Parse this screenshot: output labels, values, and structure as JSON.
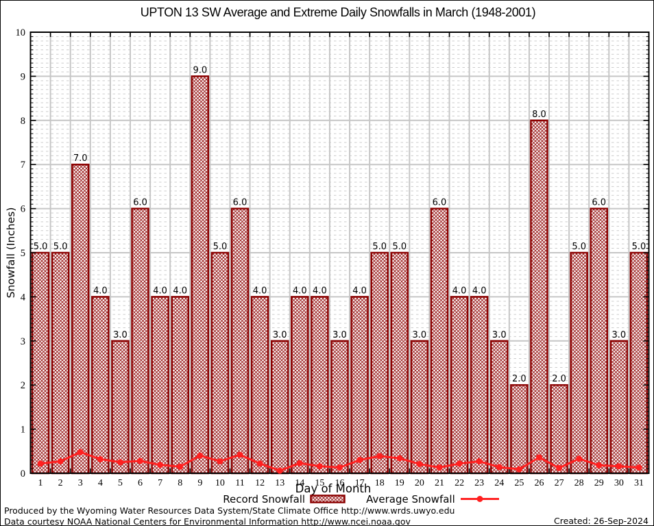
{
  "chart_data": {
    "type": "bar",
    "title": "UPTON 13 SW Average and Extreme Daily Snowfalls in March (1948-2001)",
    "xlabel": "Day of Month",
    "ylabel": "Snowfall (Inches)",
    "ylim": [
      0,
      10
    ],
    "y_major_step": 1,
    "y_minor_step": 0.1,
    "grid": "major and minor dashed horizontal, major vertical per day",
    "legend_position": "bottom",
    "categories": [
      "1",
      "2",
      "3",
      "4",
      "5",
      "6",
      "7",
      "8",
      "9",
      "10",
      "11",
      "12",
      "13",
      "14",
      "15",
      "16",
      "17",
      "18",
      "19",
      "20",
      "21",
      "22",
      "23",
      "24",
      "25",
      "26",
      "27",
      "28",
      "29",
      "30",
      "31"
    ],
    "series": [
      {
        "name": "Record Snowfall",
        "type": "bar",
        "values": [
          5.0,
          5.0,
          7.0,
          4.0,
          3.0,
          6.0,
          4.0,
          4.0,
          9.0,
          5.0,
          6.0,
          4.0,
          3.0,
          4.0,
          4.0,
          3.0,
          4.0,
          5.0,
          5.0,
          3.0,
          6.0,
          4.0,
          4.0,
          3.0,
          2.0,
          8.0,
          2.0,
          5.0,
          6.0,
          3.0,
          5.0
        ]
      },
      {
        "name": "Average Snowfall",
        "type": "line",
        "values": [
          0.22,
          0.27,
          0.48,
          0.32,
          0.25,
          0.28,
          0.19,
          0.15,
          0.4,
          0.27,
          0.42,
          0.22,
          0.06,
          0.23,
          0.16,
          0.13,
          0.3,
          0.39,
          0.34,
          0.21,
          0.13,
          0.22,
          0.27,
          0.14,
          0.09,
          0.36,
          0.12,
          0.33,
          0.18,
          0.16,
          0.13
        ]
      }
    ]
  },
  "legend": {
    "record_label": "Record Snowfall",
    "average_label": "Average Snowfall"
  },
  "footer": {
    "line1": "Produced by the Wyoming Water Resources Data System/State Climate Office http://www.wrds.uwyo.edu",
    "line2": "Data courtesy NOAA National Centers for Environmental Information http://www.ncei.noaa.gov",
    "created": "Created: 26-Sep-2024"
  },
  "colors": {
    "bar_border": "#8b0000",
    "bar_hatch": "#9b1e1e",
    "average_line": "#ff2020",
    "grid_major": "#c6c6c6",
    "grid_minor": "#cccccc",
    "axis": "#000000",
    "text": "#000000"
  }
}
